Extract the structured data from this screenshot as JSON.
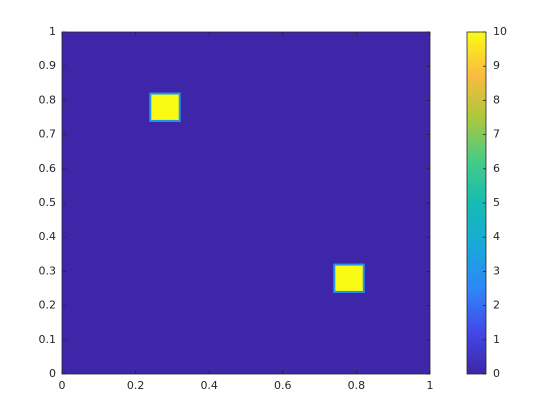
{
  "chart_data": {
    "type": "heatmap",
    "background": 0,
    "patches": [
      {
        "x": [
          0.24,
          0.32
        ],
        "y": [
          0.74,
          0.82
        ],
        "value": 10
      },
      {
        "x": [
          0.74,
          0.82
        ],
        "y": [
          0.24,
          0.32
        ],
        "value": 10
      }
    ],
    "xlim": [
      0,
      1
    ],
    "xticks": [
      0,
      0.2,
      0.4,
      0.6,
      0.8,
      1
    ],
    "ylim": [
      0,
      1
    ],
    "yticks": [
      0,
      0.1,
      0.2,
      0.3,
      0.4,
      0.5,
      0.6,
      0.7,
      0.8,
      0.9,
      1
    ],
    "clim": [
      0,
      10
    ],
    "cticks": [
      0,
      1,
      2,
      3,
      4,
      5,
      6,
      7,
      8,
      9,
      10
    ],
    "colormap": "parula"
  }
}
